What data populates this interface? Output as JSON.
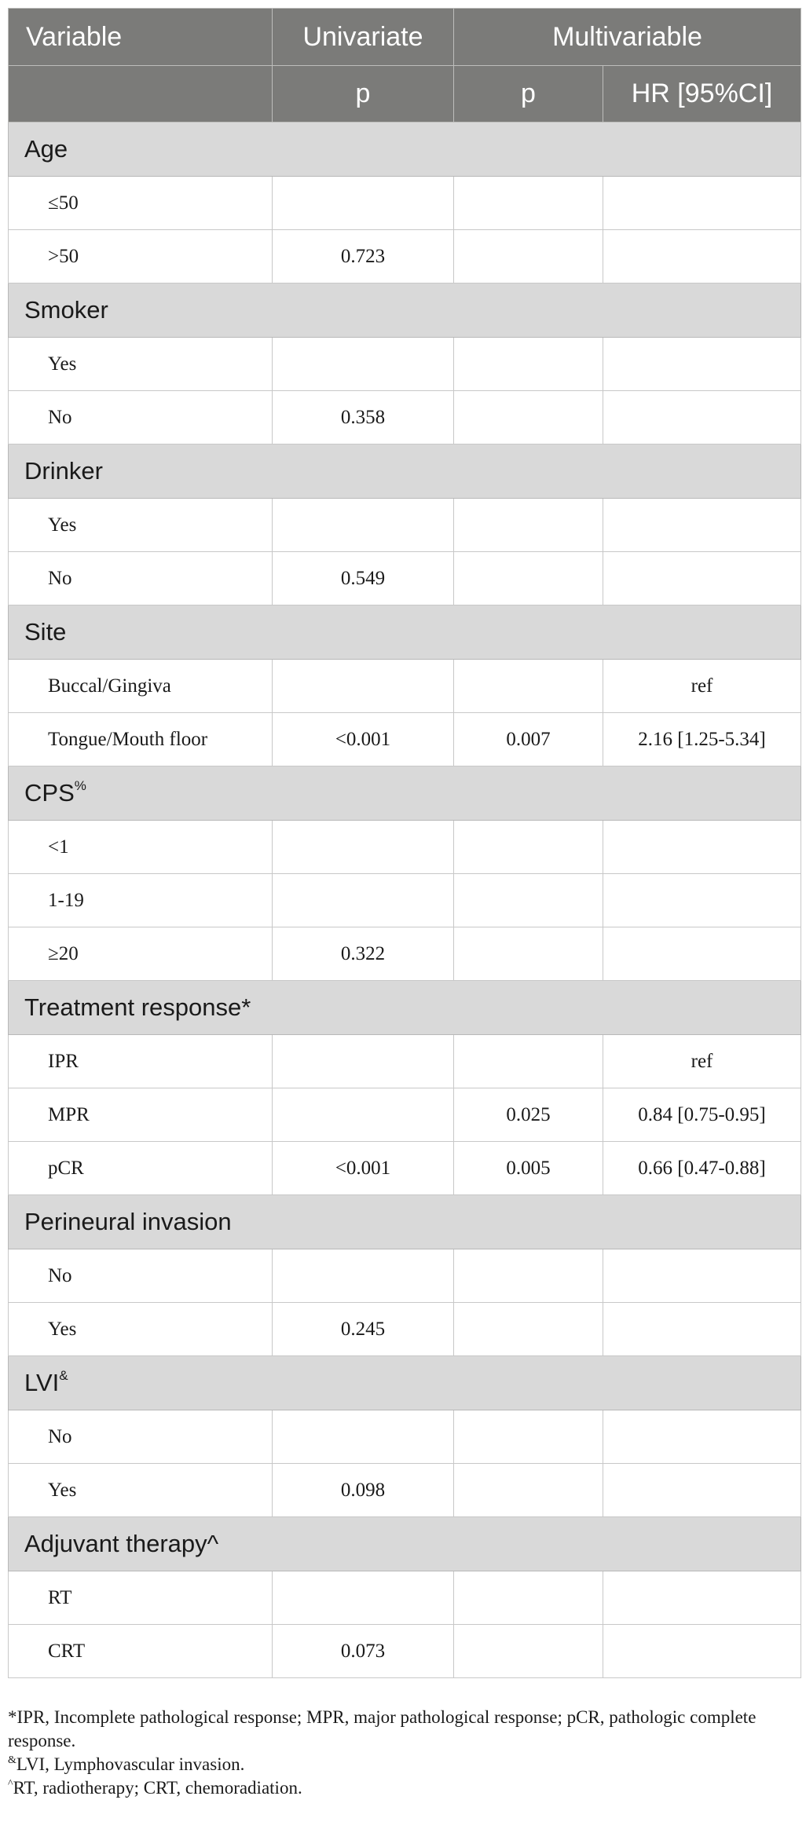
{
  "header": {
    "variable": "Variable",
    "univariate": "Univariate",
    "multivariable": "Multivariable",
    "uni_p": "p",
    "multi_p": "p",
    "hr": "HR [95%CI]"
  },
  "groups": [
    {
      "name": "Age",
      "sup": "",
      "rows": [
        {
          "label": "≤50",
          "uni_p": "",
          "multi_p": "",
          "hr": ""
        },
        {
          "label": ">50",
          "uni_p": "0.723",
          "multi_p": "",
          "hr": ""
        }
      ]
    },
    {
      "name": "Smoker",
      "sup": "",
      "rows": [
        {
          "label": "Yes",
          "uni_p": "",
          "multi_p": "",
          "hr": ""
        },
        {
          "label": "No",
          "uni_p": "0.358",
          "multi_p": "",
          "hr": ""
        }
      ]
    },
    {
      "name": "Drinker",
      "sup": "",
      "rows": [
        {
          "label": "Yes",
          "uni_p": "",
          "multi_p": "",
          "hr": ""
        },
        {
          "label": "No",
          "uni_p": "0.549",
          "multi_p": "",
          "hr": ""
        }
      ]
    },
    {
      "name": "Site",
      "sup": "",
      "rows": [
        {
          "label": "Buccal/Gingiva",
          "uni_p": "",
          "multi_p": "",
          "hr": "ref"
        },
        {
          "label": "Tongue/Mouth floor",
          "uni_p": "<0.001",
          "multi_p": "0.007",
          "hr": "2.16 [1.25-5.34]"
        }
      ]
    },
    {
      "name": "CPS",
      "sup": "%",
      "rows": [
        {
          "label": "<1",
          "uni_p": "",
          "multi_p": "",
          "hr": ""
        },
        {
          "label": "1-19",
          "uni_p": "",
          "multi_p": "",
          "hr": ""
        },
        {
          "label": "≥20",
          "uni_p": "0.322",
          "multi_p": "",
          "hr": ""
        }
      ]
    },
    {
      "name": "Treatment response*",
      "sup": "",
      "rows": [
        {
          "label": "IPR",
          "uni_p": "",
          "multi_p": "",
          "hr": "ref"
        },
        {
          "label": "MPR",
          "uni_p": "",
          "multi_p": "0.025",
          "hr": "0.84 [0.75-0.95]"
        },
        {
          "label": "pCR",
          "uni_p": "<0.001",
          "multi_p": "0.005",
          "hr": "0.66 [0.47-0.88]"
        }
      ]
    },
    {
      "name": "Perineural invasion",
      "sup": "",
      "rows": [
        {
          "label": "No",
          "uni_p": "",
          "multi_p": "",
          "hr": ""
        },
        {
          "label": "Yes",
          "uni_p": "0.245",
          "multi_p": "",
          "hr": ""
        }
      ]
    },
    {
      "name": "LVI",
      "sup": "&",
      "rows": [
        {
          "label": "No",
          "uni_p": "",
          "multi_p": "",
          "hr": ""
        },
        {
          "label": "Yes",
          "uni_p": "0.098",
          "multi_p": "",
          "hr": ""
        }
      ]
    },
    {
      "name": "Adjuvant therapy^",
      "sup": "",
      "rows": [
        {
          "label": "RT",
          "uni_p": "",
          "multi_p": "",
          "hr": ""
        },
        {
          "label": "CRT",
          "uni_p": "0.073",
          "multi_p": "",
          "hr": ""
        }
      ]
    }
  ],
  "footnotes": [
    {
      "sup": "",
      "text": "*IPR, Incomplete pathological response; MPR, major pathological response; pCR, pathologic complete response."
    },
    {
      "sup": "&",
      "text": "LVI, Lymphovascular invasion."
    },
    {
      "sup": "^",
      "text": "RT, radiotherapy; CRT, chemoradiation."
    }
  ]
}
